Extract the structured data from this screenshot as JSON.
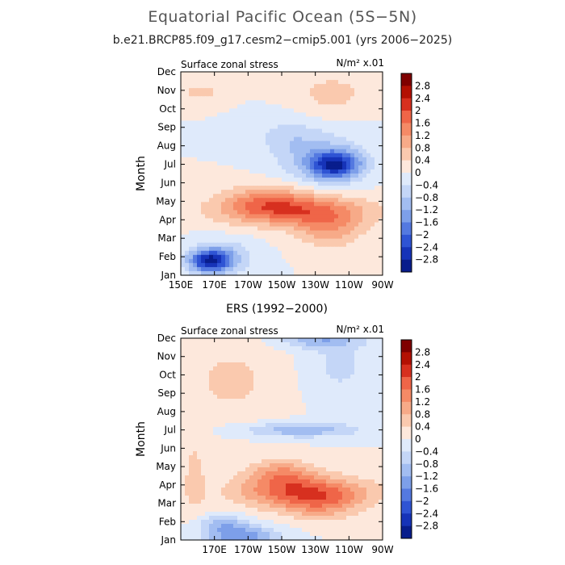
{
  "figure": {
    "title": "Equatorial Pacific Ocean (5S−5N)",
    "subtitle": "b.e21.BRCP85.f09_g17.cesm2−cmip5.001 (yrs 2006−2025)"
  },
  "colorbar": {
    "labels": [
      "2.8",
      "2.4",
      "2",
      "1.6",
      "1.2",
      "0.8",
      "0.4",
      "0",
      "−0.4",
      "−0.8",
      "−1.2",
      "−1.6",
      "−2",
      "−2.4",
      "−2.8"
    ],
    "colors": [
      "#7f0000",
      "#b31003",
      "#d7301f",
      "#ef6548",
      "#f58a66",
      "#f7aa88",
      "#fac9ae",
      "#fde8dc",
      "#dfeafb",
      "#c4d6f7",
      "#a2bdf1",
      "#7d9fe9",
      "#5479e0",
      "#2f54d4",
      "#1633b8",
      "#081d8c"
    ]
  },
  "chart_data": [
    {
      "type": "heatmap",
      "title": "",
      "left_label": "Surface zonal stress",
      "right_label": "N/m² x.01",
      "ylabel": "Month",
      "xlabel": "",
      "y_ticks": [
        "Jan",
        "Feb",
        "Mar",
        "Apr",
        "May",
        "Jun",
        "Jul",
        "Aug",
        "Sep",
        "Oct",
        "Nov",
        "Dec"
      ],
      "x_ticks": [
        "150E",
        "170E",
        "170W",
        "150W",
        "130W",
        "110W",
        "90W"
      ],
      "x_lon": [
        150,
        170,
        190,
        210,
        230,
        250,
        270
      ],
      "x_range_lon": [
        150,
        270
      ],
      "y_range_month": [
        1,
        12
      ],
      "levels": [
        -2.8,
        -2.4,
        -2,
        -1.6,
        -1.2,
        -0.8,
        -0.4,
        0,
        0.4,
        0.8,
        1.2,
        1.6,
        2,
        2.4,
        2.8
      ],
      "features": [
        {
          "lon": 242,
          "month": 6.95,
          "value": -2.3,
          "lon_width": 15,
          "month_width": 0.75
        },
        {
          "lon": 233,
          "month": 7.3,
          "value": -0.9,
          "lon_width": 25,
          "month_width": 1.4
        },
        {
          "lon": 213,
          "month": 8.5,
          "value": -0.5,
          "lon_width": 18,
          "month_width": 1.0
        },
        {
          "lon": 217,
          "month": 4.5,
          "value": 1.6,
          "lon_width": 45,
          "month_width": 0.85
        },
        {
          "lon": 201,
          "month": 5.1,
          "value": 0.9,
          "lon_width": 25,
          "month_width": 0.9
        },
        {
          "lon": 238,
          "month": 3.5,
          "value": 1.0,
          "lon_width": 20,
          "month_width": 1.0
        },
        {
          "lon": 167,
          "month": 1.75,
          "value": -2.4,
          "lon_width": 12,
          "month_width": 0.6
        },
        {
          "lon": 175,
          "month": 2.0,
          "value": -0.9,
          "lon_width": 18,
          "month_width": 0.9
        },
        {
          "lon": 162,
          "month": 10.9,
          "value": 0.6,
          "lon_width": 12,
          "month_width": 0.5
        },
        {
          "lon": 240,
          "month": 10.8,
          "value": 0.6,
          "lon_width": 20,
          "month_width": 1.1
        }
      ]
    },
    {
      "type": "heatmap",
      "title": "ERS (1992−2000)",
      "left_label": "Surface zonal stress",
      "right_label": "N/m² x.01",
      "ylabel": "Month",
      "xlabel": "",
      "y_ticks": [
        "Jan",
        "Feb",
        "Mar",
        "Apr",
        "May",
        "Jun",
        "Jul",
        "Aug",
        "Sep",
        "Oct",
        "Nov",
        "Dec"
      ],
      "x_ticks": [
        "170E",
        "170W",
        "150W",
        "130W",
        "110W",
        "90W"
      ],
      "x_lon": [
        170,
        190,
        210,
        230,
        250,
        270
      ],
      "x_range_lon": [
        150,
        270
      ],
      "y_range_month": [
        1,
        12
      ],
      "levels": [
        -2.8,
        -2.4,
        -2,
        -1.6,
        -1.2,
        -0.8,
        -0.4,
        0,
        0.4,
        0.8,
        1.2,
        1.6,
        2,
        2.4,
        2.8
      ],
      "features": [
        {
          "lon": 223,
          "month": 3.6,
          "value": 1.7,
          "lon_width": 40,
          "month_width": 0.9
        },
        {
          "lon": 210,
          "month": 4.6,
          "value": 1.1,
          "lon_width": 20,
          "month_width": 0.8
        },
        {
          "lon": 233,
          "month": 2.9,
          "value": 0.8,
          "lon_width": 22,
          "month_width": 0.9
        },
        {
          "lon": 221,
          "month": 7.0,
          "value": -1.1,
          "lon_width": 35,
          "month_width": 0.4
        },
        {
          "lon": 233,
          "month": 11.9,
          "value": -1.0,
          "lon_width": 25,
          "month_width": 0.45
        },
        {
          "lon": 186,
          "month": 1.15,
          "value": -1.5,
          "lon_width": 22,
          "month_width": 0.6
        },
        {
          "lon": 175,
          "month": 1.9,
          "value": -0.9,
          "lon_width": 15,
          "month_width": 0.5
        },
        {
          "lon": 180,
          "month": 9.7,
          "value": 0.5,
          "lon_width": 30,
          "month_width": 2.2
        },
        {
          "lon": 158,
          "month": 4.5,
          "value": 0.5,
          "lon_width": 8,
          "month_width": 2.5
        },
        {
          "lon": 244,
          "month": 10.5,
          "value": -0.5,
          "lon_width": 20,
          "month_width": 1.8
        }
      ]
    }
  ]
}
